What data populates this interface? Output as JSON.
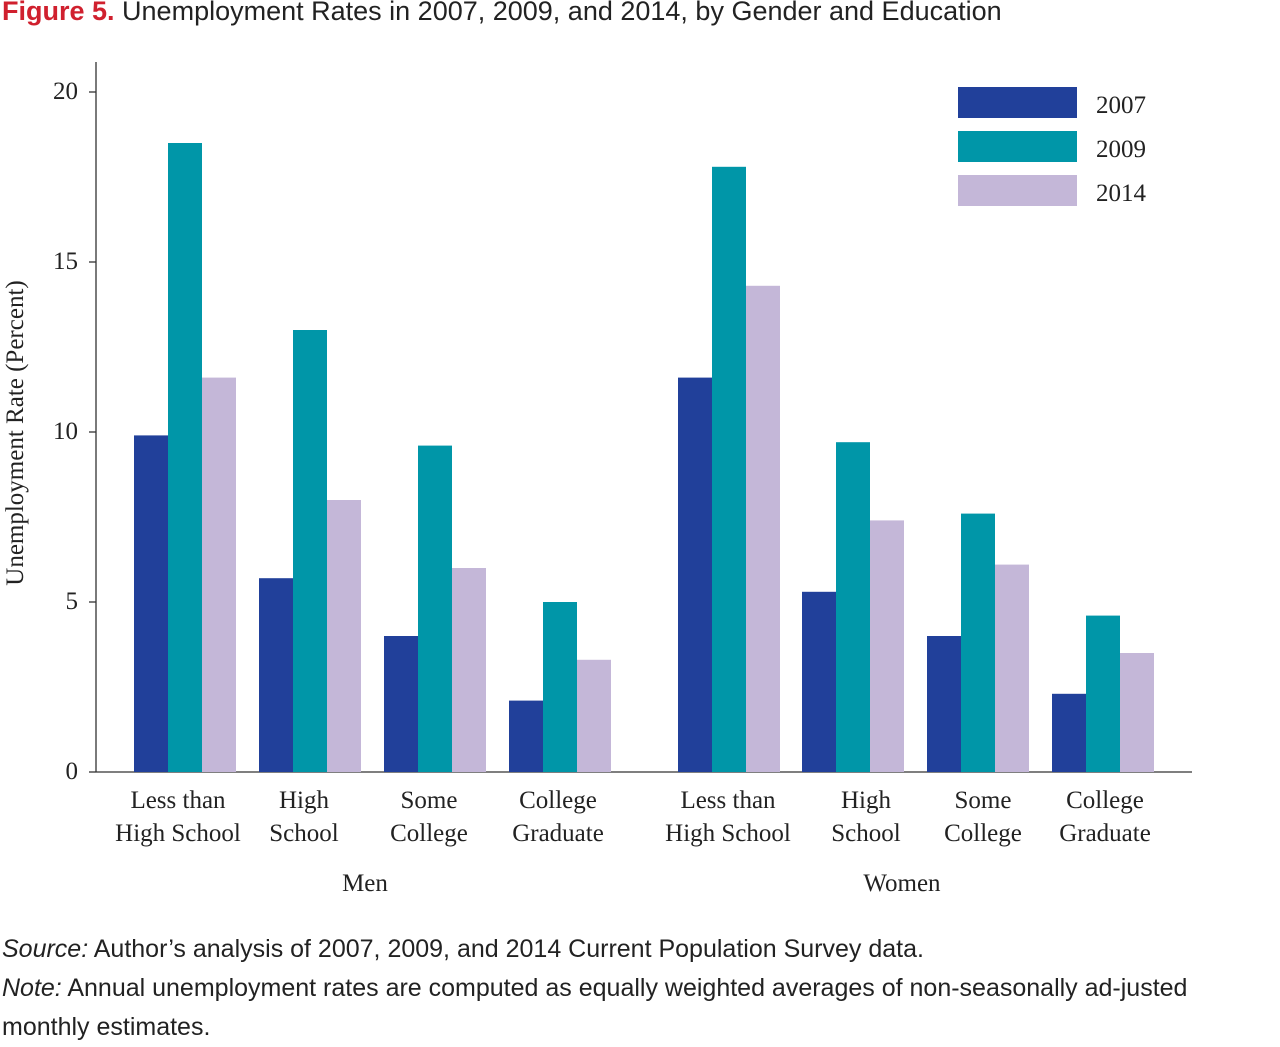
{
  "title": {
    "figure_label": "Figure 5.",
    "text": "Unemployment Rates in 2007, 2009, and 2014, by Gender and Education"
  },
  "chart_data": {
    "type": "bar",
    "ylabel": "Unemployment Rate (Percent)",
    "xlabel": "",
    "ylim": [
      0,
      21
    ],
    "yticks": [
      0,
      5,
      10,
      15,
      20
    ],
    "grid": false,
    "legend_position": "top-right",
    "groups": [
      {
        "name": "Men",
        "categories": [
          [
            "Less than",
            "High School"
          ],
          [
            "High",
            "School"
          ],
          [
            "Some",
            "College"
          ],
          [
            "College",
            "Graduate"
          ]
        ]
      },
      {
        "name": "Women",
        "categories": [
          [
            "Less than",
            "High School"
          ],
          [
            "High",
            "School"
          ],
          [
            "Some",
            "College"
          ],
          [
            "College",
            "Graduate"
          ]
        ]
      }
    ],
    "series": [
      {
        "name": "2007",
        "color": "#21409a",
        "values": [
          9.9,
          5.7,
          4.0,
          2.1,
          11.6,
          5.3,
          4.0,
          2.3
        ]
      },
      {
        "name": "2009",
        "color": "#0096a8",
        "values": [
          18.5,
          13.0,
          9.6,
          5.0,
          17.8,
          9.7,
          7.6,
          4.6
        ]
      },
      {
        "name": "2014",
        "color": "#c4b7d8",
        "values": [
          11.6,
          8.0,
          6.0,
          3.3,
          14.3,
          7.4,
          6.1,
          3.5
        ]
      }
    ]
  },
  "notes": {
    "source_label": "Source:",
    "source_text": " Author’s analysis of 2007, 2009, and 2014 Current Population Survey data.",
    "note_label": "Note:",
    "note_text": " Annual unemployment rates are computed as equally weighted averages of non-seasonally ad-justed monthly estimates."
  }
}
